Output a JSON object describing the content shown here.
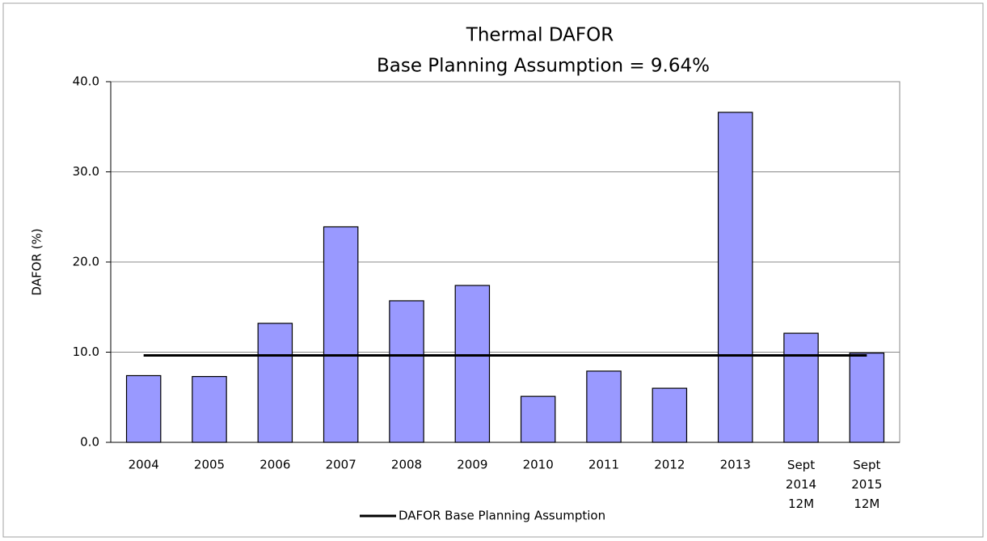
{
  "chart_data": {
    "type": "bar",
    "title": "Thermal DAFOR",
    "subtitle": "Base Planning Assumption = 9.64%",
    "y_label": "DAFOR (%)",
    "categories": [
      "2004",
      "2005",
      "2006",
      "2007",
      "2008",
      "2009",
      "2010",
      "2011",
      "2012",
      "2013",
      "Sept 2014 12M",
      "Sept 2015 12M"
    ],
    "values": [
      7.4,
      7.3,
      13.2,
      23.9,
      15.7,
      17.4,
      5.1,
      7.9,
      6.0,
      36.6,
      12.1,
      9.9
    ],
    "color": "#9999ff",
    "reference_line": {
      "name": "DAFOR Base Planning Assumption",
      "value": 9.64,
      "color": "#000000"
    },
    "ylim": [
      0,
      40
    ],
    "yticks": [
      {
        "value": 0,
        "label": "0.0"
      },
      {
        "value": 10,
        "label": "10.0"
      },
      {
        "value": 20,
        "label": "20.0"
      },
      {
        "value": 30,
        "label": "30.0"
      },
      {
        "value": 40,
        "label": "40.0"
      }
    ],
    "grid": true,
    "legend": "bottom"
  }
}
